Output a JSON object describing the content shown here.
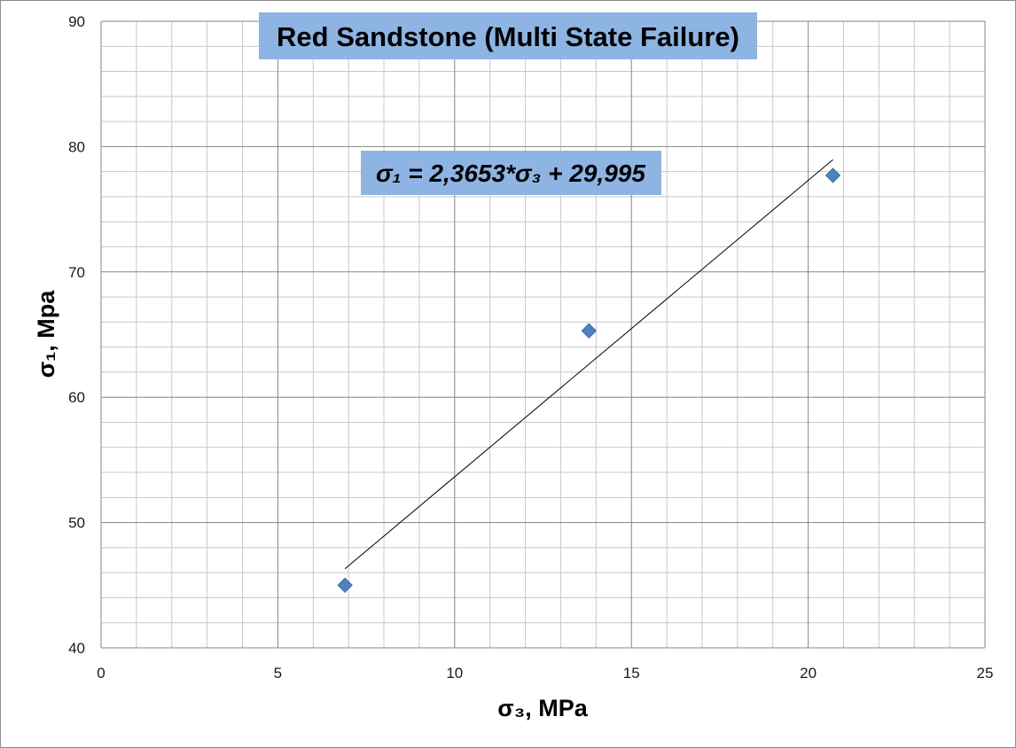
{
  "chart_data": {
    "type": "scatter",
    "title": "Red Sandstone (Multi State Failure)",
    "xlabel": "σ₃, MPa",
    "ylabel": "σ₁, Mpa",
    "xlim": [
      0,
      25
    ],
    "ylim": [
      40,
      90
    ],
    "x_ticks": [
      0,
      5,
      10,
      15,
      20,
      25
    ],
    "y_ticks": [
      40,
      50,
      60,
      70,
      80,
      90
    ],
    "x_minor_step": 1,
    "y_minor_step": 2,
    "grid": true,
    "series": [
      {
        "points": [
          {
            "x": 6.9,
            "y": 45.0
          },
          {
            "x": 13.8,
            "y": 65.3
          },
          {
            "x": 20.7,
            "y": 77.7
          }
        ]
      }
    ],
    "trendline": {
      "type": "linear",
      "slope": 2.3653,
      "intercept": 29.995,
      "x_range": [
        6.9,
        20.7
      ],
      "equation": "σ₁ = 2,3653*σ₃ + 29,995"
    },
    "colors": {
      "marker": "#4f81bd",
      "title_box": "#8eb4e3",
      "grid_minor": "#c8c8c8",
      "grid_major": "#858585",
      "trendline": "#000000"
    }
  }
}
